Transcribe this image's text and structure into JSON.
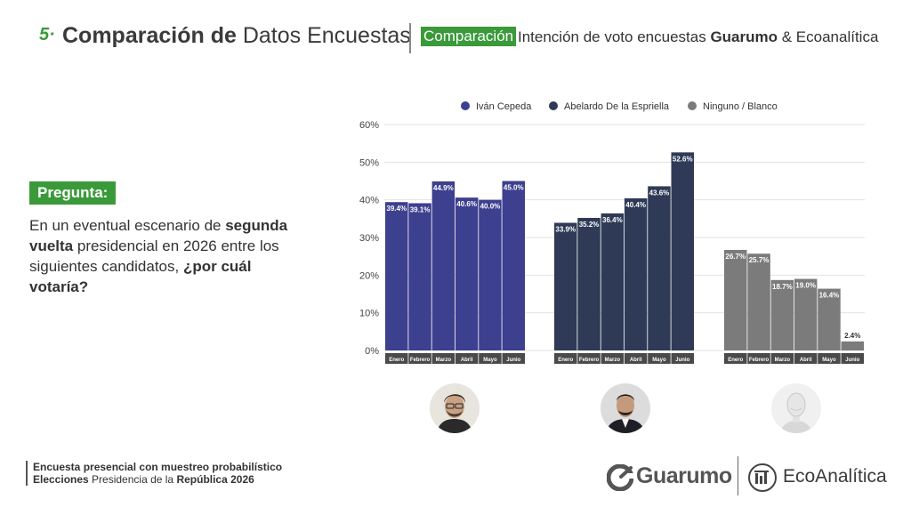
{
  "header": {
    "number": "5·",
    "title_bold": "Comparación de",
    "title_rest": " Datos Encuestas",
    "badge": "Comparación",
    "subtitle_pre": "Intención de voto encuestas ",
    "subtitle_bold": "Guarumo",
    "subtitle_post": "  & Ecoanalítica"
  },
  "question": {
    "badge": "Pregunta:",
    "text_1": "En un eventual escenario de ",
    "text_2": "segunda vuelta",
    "text_3": " presidencial en 2026 entre los siguientes candidatos, ",
    "text_4": "¿por cuál votaría?"
  },
  "chart_data": {
    "type": "bar",
    "categories": [
      "Enero",
      "Febrero",
      "Marzo",
      "Abril",
      "Mayo",
      "Junio"
    ],
    "series": [
      {
        "name": "Iván Cepeda",
        "color": "#3d3f8f",
        "values": [
          39.4,
          39.1,
          44.9,
          40.6,
          40.0,
          45.0
        ],
        "labels": [
          "39.4%",
          "39.1%",
          "44.9%",
          "40.6%",
          "40.0%",
          "45.0%"
        ]
      },
      {
        "name": "Abelardo De la Espriella",
        "color": "#2e3a56",
        "values": [
          33.9,
          35.2,
          36.4,
          40.4,
          43.6,
          52.6
        ],
        "labels": [
          "33.9%",
          "35.2%",
          "36.4%",
          "40.4%",
          "43.6%",
          "52.6%"
        ]
      },
      {
        "name": "Ninguno / Blanco",
        "color": "#7b7b7b",
        "values": [
          26.7,
          25.7,
          18.7,
          19.0,
          16.4,
          2.4
        ],
        "labels": [
          "26.7%",
          "25.7%",
          "18.7%",
          "19.0%",
          "16.4%",
          "2.4%"
        ]
      }
    ],
    "yticks": [
      "0%",
      "10%",
      "20%",
      "30%",
      "40%",
      "50%",
      "60%"
    ],
    "ylim": [
      0,
      60
    ],
    "grid": true,
    "legend_position": "top"
  },
  "avatars": [
    {
      "icon": "candidate-photo-ivan-cepeda"
    },
    {
      "icon": "candidate-photo-abelardo-de-la-espriella"
    },
    {
      "icon": "mannequin-icon"
    }
  ],
  "footer": {
    "line1": "Encuesta presencial con muestreo probabilístico",
    "line2_bold": "Elecciones",
    "line2_mid": " Presidencia de la ",
    "line2_bold2": "República 2026"
  },
  "logos": {
    "guarumo": "Guarumo",
    "ecoanalitica": "EcoAnalítica"
  }
}
